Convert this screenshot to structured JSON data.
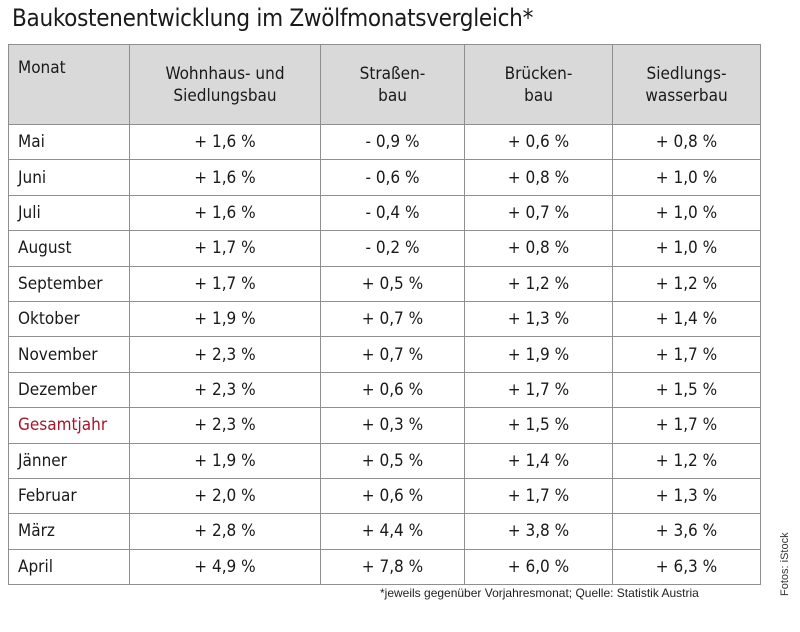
{
  "title": "Baukostenentwicklung im Zwölfmonatsvergleich*",
  "columns": {
    "month": "Monat",
    "col1": [
      "Wohnhaus- und",
      "Siedlungsbau"
    ],
    "col2": [
      "Straßen-",
      "bau"
    ],
    "col3": [
      "Brücken-",
      "bau"
    ],
    "col4": [
      "Siedlungs-",
      "wasserbau"
    ]
  },
  "rows": [
    {
      "month": "Mai",
      "values": [
        "+ 1,6 %",
        "- 0,9 %",
        "+ 0,6 %",
        "+ 0,8 %"
      ]
    },
    {
      "month": "Juni",
      "values": [
        "+ 1,6 %",
        "- 0,6 %",
        "+ 0,8 %",
        "+ 1,0 %"
      ]
    },
    {
      "month": "Juli",
      "values": [
        "+ 1,6 %",
        "- 0,4 %",
        "+ 0,7 %",
        "+ 1,0 %"
      ]
    },
    {
      "month": "August",
      "values": [
        "+ 1,7 %",
        "- 0,2 %",
        "+ 0,8 %",
        "+ 1,0 %"
      ]
    },
    {
      "month": "September",
      "values": [
        "+ 1,7 %",
        "+ 0,5 %",
        "+ 1,2 %",
        "+ 1,2 %"
      ]
    },
    {
      "month": "Oktober",
      "values": [
        "+ 1,9 %",
        "+ 0,7 %",
        "+ 1,3 %",
        "+ 1,4 %"
      ]
    },
    {
      "month": "November",
      "values": [
        "+ 2,3 %",
        "+ 0,7 %",
        "+ 1,9 %",
        "+ 1,7 %"
      ]
    },
    {
      "month": "Dezember",
      "values": [
        "+ 2,3 %",
        "+ 0,6 %",
        "+ 1,7 %",
        "+ 1,5 %"
      ]
    },
    {
      "month": "Gesamtjahr",
      "values": [
        "+ 2,3 %",
        "+ 0,3 %",
        "+ 1,5 %",
        "+ 1,7 %"
      ]
    },
    {
      "month": "Jänner",
      "values": [
        "+ 1,9 %",
        "+ 0,5 %",
        "+ 1,4 %",
        "+ 1,2 %"
      ]
    },
    {
      "month": "Februar",
      "values": [
        "+ 2,0 %",
        "+ 0,6 %",
        "+ 1,7 %",
        "+ 1,3 %"
      ]
    },
    {
      "month": "März",
      "values": [
        "+ 2,8 %",
        "+ 4,4 %",
        "+ 3,8 %",
        "+ 3,6 %"
      ]
    },
    {
      "month": "April",
      "values": [
        "+ 4,9 %",
        "+ 7,8 %",
        "+ 6,0 %",
        "+ 6,3 %"
      ]
    }
  ],
  "colors": {
    "header_bg": "#d9d9d9",
    "highlight_text": "#a5162a",
    "border": "#8f8f8f"
  },
  "footnote": "*jeweils gegenüber Vorjahresmonat; Quelle: Statistik Austria",
  "credit": "Fotos: iStock"
}
